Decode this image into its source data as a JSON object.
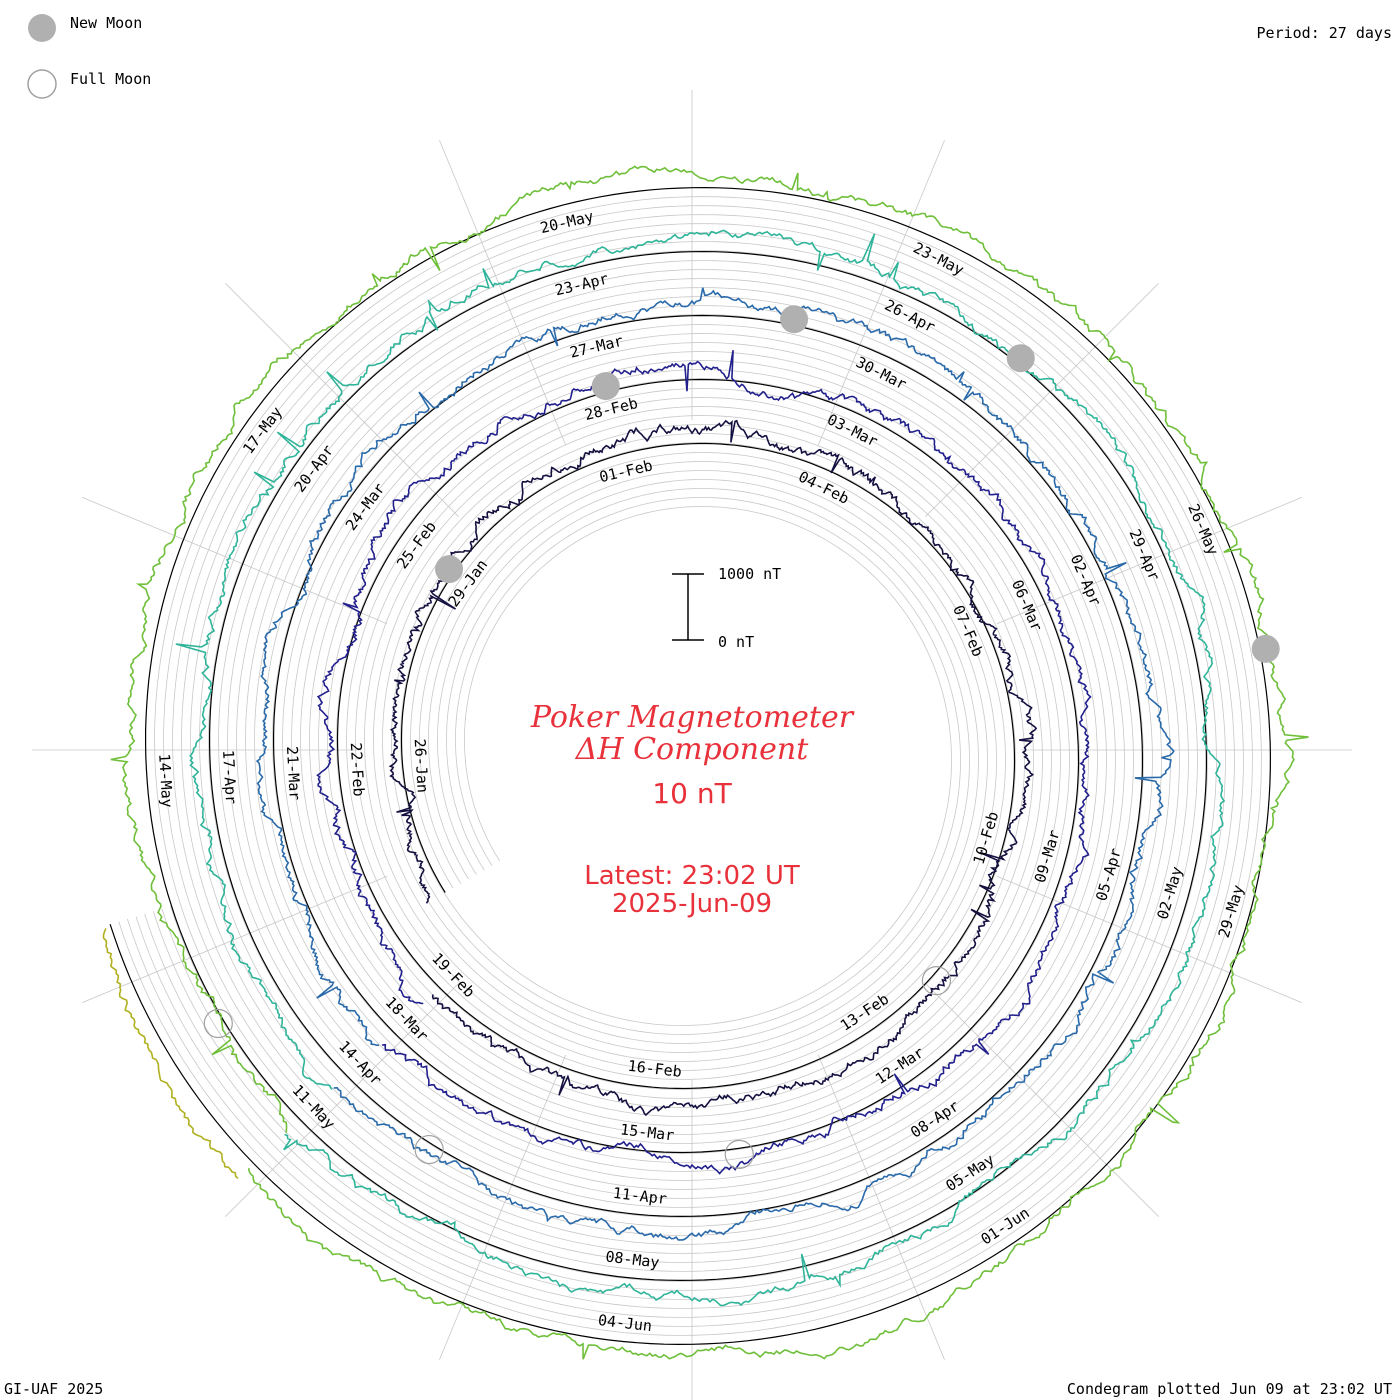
{
  "legend": {
    "new_moon": "New Moon",
    "full_moon": "Full Moon"
  },
  "period_label": "Period: 27 days",
  "footer_left": "GI-UAF 2025",
  "footer_right": "Condegram plotted Jun 09 at 23:02 UT",
  "scale_bar": {
    "top_label": "1000 nT",
    "bottom_label": "0 nT"
  },
  "title": {
    "line1": "Poker Magnetometer",
    "line2": "ΔH Component",
    "line3": "10 nT"
  },
  "latest": {
    "line1": "Latest: 23:02 UT",
    "line2": "2025-Jun-09"
  },
  "colors": {
    "moon_fill": "#b0b0b0",
    "grid": "#c8c8c8",
    "baseline": "#000000",
    "title_red": "#e8313a"
  },
  "chart_data": {
    "type": "line",
    "period_days": 27,
    "start_date": "2025-01-24",
    "end_date": "2025-06-09",
    "series": [
      {
        "cycle": 1,
        "start": "2025-01-24",
        "end": "2025-02-19",
        "color": "#141040"
      },
      {
        "cycle": 2,
        "start": "2025-02-19",
        "end": "2025-03-18",
        "color": "#22208c"
      },
      {
        "cycle": 3,
        "start": "2025-03-18",
        "end": "2025-04-14",
        "color": "#2a6aaa"
      },
      {
        "cycle": 4,
        "start": "2025-04-14",
        "end": "2025-05-11",
        "color": "#2fb49a"
      },
      {
        "cycle": 5,
        "start": "2025-05-11",
        "end": "2025-06-07",
        "color": "#6fbf3a"
      },
      {
        "cycle": 6,
        "start": "2025-06-07",
        "end": "2025-06-09",
        "color": "#b0b020"
      }
    ],
    "date_labels": [
      {
        "date": "2025-01-26",
        "text": "26-Jan"
      },
      {
        "date": "2025-01-29",
        "text": "29-Jan"
      },
      {
        "date": "2025-02-01",
        "text": "01-Feb"
      },
      {
        "date": "2025-02-04",
        "text": "04-Feb"
      },
      {
        "date": "2025-02-07",
        "text": "07-Feb"
      },
      {
        "date": "2025-02-10",
        "text": "10-Feb"
      },
      {
        "date": "2025-02-13",
        "text": "13-Feb"
      },
      {
        "date": "2025-02-16",
        "text": "16-Feb"
      },
      {
        "date": "2025-02-19",
        "text": "19-Feb"
      },
      {
        "date": "2025-02-22",
        "text": "22-Feb"
      },
      {
        "date": "2025-02-25",
        "text": "25-Feb"
      },
      {
        "date": "2025-02-28",
        "text": "28-Feb"
      },
      {
        "date": "2025-03-03",
        "text": "03-Mar"
      },
      {
        "date": "2025-03-06",
        "text": "06-Mar"
      },
      {
        "date": "2025-03-09",
        "text": "09-Mar"
      },
      {
        "date": "2025-03-12",
        "text": "12-Mar"
      },
      {
        "date": "2025-03-15",
        "text": "15-Mar"
      },
      {
        "date": "2025-03-18",
        "text": "18-Mar"
      },
      {
        "date": "2025-03-21",
        "text": "21-Mar"
      },
      {
        "date": "2025-03-24",
        "text": "24-Mar"
      },
      {
        "date": "2025-03-27",
        "text": "27-Mar"
      },
      {
        "date": "2025-03-30",
        "text": "30-Mar"
      },
      {
        "date": "2025-04-02",
        "text": "02-Apr"
      },
      {
        "date": "2025-04-05",
        "text": "05-Apr"
      },
      {
        "date": "2025-04-08",
        "text": "08-Apr"
      },
      {
        "date": "2025-04-11",
        "text": "11-Apr"
      },
      {
        "date": "2025-04-14",
        "text": "14-Apr"
      },
      {
        "date": "2025-04-17",
        "text": "17-Apr"
      },
      {
        "date": "2025-04-20",
        "text": "20-Apr"
      },
      {
        "date": "2025-04-23",
        "text": "23-Apr"
      },
      {
        "date": "2025-04-26",
        "text": "26-Apr"
      },
      {
        "date": "2025-04-29",
        "text": "29-Apr"
      },
      {
        "date": "2025-05-02",
        "text": "02-May"
      },
      {
        "date": "2025-05-05",
        "text": "05-May"
      },
      {
        "date": "2025-05-08",
        "text": "08-May"
      },
      {
        "date": "2025-05-11",
        "text": "11-May"
      },
      {
        "date": "2025-05-14",
        "text": "14-May"
      },
      {
        "date": "2025-05-17",
        "text": "17-May"
      },
      {
        "date": "2025-05-20",
        "text": "20-May"
      },
      {
        "date": "2025-05-23",
        "text": "23-May"
      },
      {
        "date": "2025-05-26",
        "text": "26-May"
      },
      {
        "date": "2025-05-29",
        "text": "29-May"
      },
      {
        "date": "2025-06-01",
        "text": "01-Jun"
      },
      {
        "date": "2025-06-04",
        "text": "04-Jun"
      }
    ],
    "moon_phases": [
      {
        "type": "new",
        "date": "2025-01-29"
      },
      {
        "type": "full",
        "date": "2025-02-12"
      },
      {
        "type": "new",
        "date": "2025-02-28"
      },
      {
        "type": "full",
        "date": "2025-03-14"
      },
      {
        "type": "new",
        "date": "2025-03-29"
      },
      {
        "type": "full",
        "date": "2025-04-13"
      },
      {
        "type": "new",
        "date": "2025-04-27"
      },
      {
        "type": "full",
        "date": "2025-05-12"
      },
      {
        "type": "new",
        "date": "2025-05-27"
      }
    ]
  }
}
